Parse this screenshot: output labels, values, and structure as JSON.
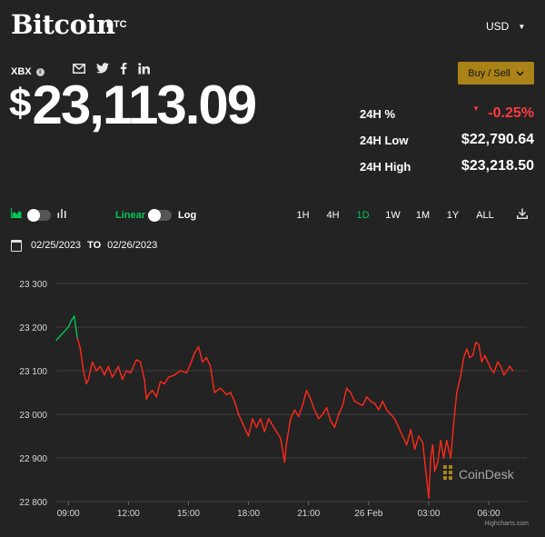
{
  "header": {
    "title": "Bitcoin",
    "symbol": "BTC",
    "currency": "USD"
  },
  "exchange": "XBX",
  "price": {
    "symbol": "$",
    "value": "23,113.09"
  },
  "buy_sell": "Buy / Sell",
  "stats": [
    {
      "label": "24H %",
      "value": "-0.25%"
    },
    {
      "label": "24H Low",
      "value": "$22,790.64"
    },
    {
      "label": "24H High",
      "value": "$23,218.50"
    }
  ],
  "controls": {
    "linear": "Linear",
    "log": "Log",
    "ranges": [
      "1H",
      "4H",
      "1D",
      "1W",
      "1M",
      "1Y",
      "ALL"
    ],
    "active_range": "1D"
  },
  "date_range": {
    "from": "02/25/2023",
    "to_label": "TO",
    "to": "02/26/2023"
  },
  "watermark": "CoinDesk",
  "credit": "Highcharts.com",
  "colors": {
    "up": "#00c853",
    "down": "#ff2a1a",
    "accent": "#a98318"
  },
  "chart_data": {
    "type": "line",
    "ylim": [
      22800,
      23300
    ],
    "yticks": [
      "23 300",
      "23 200",
      "23 100",
      "23 000",
      "22 900",
      "22 800"
    ],
    "ytick_values": [
      23300,
      23200,
      23100,
      23000,
      22900,
      22800
    ],
    "xtick_labels": [
      "09:00",
      "12:00",
      "15:00",
      "18:00",
      "21:00",
      "26 Feb",
      "03:00",
      "06:00"
    ],
    "xtick_hours": [
      0,
      3,
      6,
      9,
      12,
      15,
      18,
      21
    ],
    "xlim_hours": [
      -0.6,
      22.9
    ],
    "series": [
      {
        "points": [
          [
            -0.6,
            23170
          ],
          [
            -0.4,
            23180
          ],
          [
            -0.2,
            23190
          ],
          [
            0.0,
            23200
          ],
          [
            0.15,
            23215
          ],
          [
            0.3,
            23225
          ],
          [
            0.45,
            23175
          ],
          [
            0.6,
            23150
          ],
          [
            0.75,
            23100
          ],
          [
            0.9,
            23070
          ],
          [
            1.0,
            23080
          ],
          [
            1.2,
            23120
          ],
          [
            1.4,
            23100
          ],
          [
            1.6,
            23110
          ],
          [
            1.8,
            23090
          ],
          [
            2.0,
            23110
          ],
          [
            2.2,
            23085
          ],
          [
            2.5,
            23110
          ],
          [
            2.7,
            23080
          ],
          [
            2.9,
            23100
          ],
          [
            3.1,
            23095
          ],
          [
            3.4,
            23125
          ],
          [
            3.6,
            23120
          ],
          [
            3.8,
            23080
          ],
          [
            3.9,
            23035
          ],
          [
            4.0,
            23045
          ],
          [
            4.2,
            23055
          ],
          [
            4.4,
            23040
          ],
          [
            4.6,
            23075
          ],
          [
            4.8,
            23070
          ],
          [
            5.0,
            23085
          ],
          [
            5.3,
            23090
          ],
          [
            5.6,
            23100
          ],
          [
            5.9,
            23095
          ],
          [
            6.1,
            23115
          ],
          [
            6.3,
            23140
          ],
          [
            6.5,
            23155
          ],
          [
            6.7,
            23120
          ],
          [
            6.9,
            23130
          ],
          [
            7.1,
            23110
          ],
          [
            7.3,
            23050
          ],
          [
            7.6,
            23060
          ],
          [
            7.9,
            23045
          ],
          [
            8.1,
            23050
          ],
          [
            8.3,
            23030
          ],
          [
            8.5,
            23000
          ],
          [
            8.7,
            22980
          ],
          [
            8.9,
            22960
          ],
          [
            9.0,
            22950
          ],
          [
            9.2,
            22990
          ],
          [
            9.4,
            22970
          ],
          [
            9.6,
            22990
          ],
          [
            9.8,
            22960
          ],
          [
            10.0,
            22990
          ],
          [
            10.2,
            22975
          ],
          [
            10.4,
            22960
          ],
          [
            10.6,
            22945
          ],
          [
            10.8,
            22890
          ],
          [
            10.9,
            22935
          ],
          [
            11.1,
            22990
          ],
          [
            11.3,
            23010
          ],
          [
            11.5,
            22995
          ],
          [
            11.7,
            23020
          ],
          [
            11.9,
            23055
          ],
          [
            12.1,
            23035
          ],
          [
            12.3,
            23010
          ],
          [
            12.5,
            22990
          ],
          [
            12.7,
            23000
          ],
          [
            12.9,
            23015
          ],
          [
            13.1,
            22985
          ],
          [
            13.3,
            22970
          ],
          [
            13.5,
            23000
          ],
          [
            13.7,
            23020
          ],
          [
            13.9,
            23060
          ],
          [
            14.1,
            23050
          ],
          [
            14.3,
            23030
          ],
          [
            14.5,
            23025
          ],
          [
            14.7,
            23020
          ],
          [
            14.9,
            23040
          ],
          [
            15.1,
            23030
          ],
          [
            15.3,
            23025
          ],
          [
            15.5,
            23010
          ],
          [
            15.7,
            23030
          ],
          [
            15.9,
            23010
          ],
          [
            16.1,
            23000
          ],
          [
            16.3,
            22990
          ],
          [
            16.5,
            22970
          ],
          [
            16.7,
            22950
          ],
          [
            16.9,
            22930
          ],
          [
            17.1,
            22965
          ],
          [
            17.3,
            22920
          ],
          [
            17.5,
            22950
          ],
          [
            17.7,
            22935
          ],
          [
            17.9,
            22850
          ],
          [
            18.0,
            22808
          ],
          [
            18.1,
            22900
          ],
          [
            18.2,
            22930
          ],
          [
            18.3,
            22870
          ],
          [
            18.45,
            22890
          ],
          [
            18.6,
            22940
          ],
          [
            18.75,
            22900
          ],
          [
            18.9,
            22940
          ],
          [
            19.1,
            22900
          ],
          [
            19.25,
            22980
          ],
          [
            19.4,
            23050
          ],
          [
            19.6,
            23090
          ],
          [
            19.75,
            23130
          ],
          [
            19.9,
            23150
          ],
          [
            20.05,
            23130
          ],
          [
            20.2,
            23135
          ],
          [
            20.35,
            23165
          ],
          [
            20.5,
            23160
          ],
          [
            20.65,
            23120
          ],
          [
            20.8,
            23135
          ],
          [
            20.95,
            23120
          ],
          [
            21.1,
            23105
          ],
          [
            21.25,
            23095
          ],
          [
            21.45,
            23120
          ],
          [
            21.6,
            23110
          ],
          [
            21.75,
            23090
          ],
          [
            21.9,
            23100
          ],
          [
            22.05,
            23110
          ],
          [
            22.2,
            23100
          ]
        ]
      }
    ]
  }
}
